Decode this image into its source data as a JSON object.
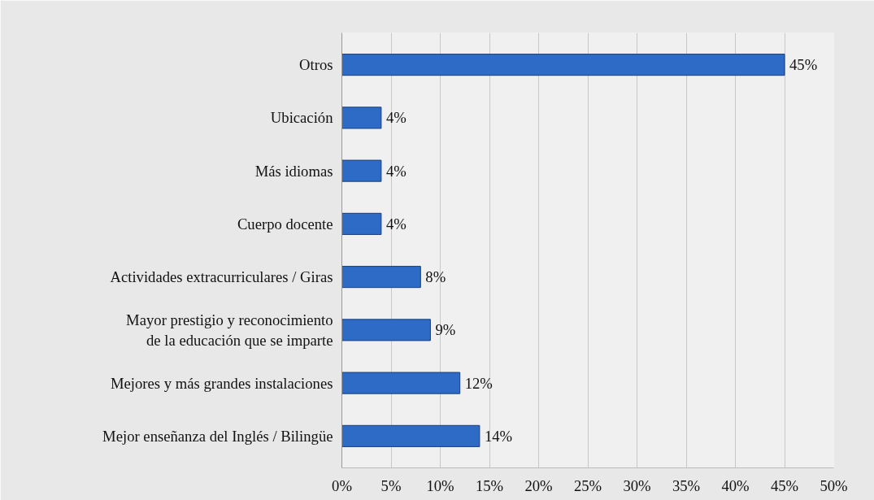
{
  "chart_data": {
    "type": "bar",
    "orientation": "horizontal",
    "categories": [
      "Otros",
      "Ubicación",
      "Más idiomas",
      "Cuerpo docente",
      "Actividades extracurriculares / Giras",
      "Mayor prestigio y reconocimiento\nde la educación que se imparte",
      "Mejores y más grandes instalaciones",
      "Mejor enseñanza del Inglés / Bilingüe"
    ],
    "values": [
      45,
      4,
      4,
      4,
      8,
      9,
      12,
      14
    ],
    "value_labels": [
      "45%",
      "4%",
      "4%",
      "4%",
      "8%",
      "9%",
      "12%",
      "14%"
    ],
    "color": "#2e6bc6",
    "xlim": [
      0,
      50
    ],
    "xticks": [
      {
        "value": 0,
        "label": "0%"
      },
      {
        "value": 5,
        "label": "5%"
      },
      {
        "value": 10,
        "label": "10%"
      },
      {
        "value": 15,
        "label": "15%"
      },
      {
        "value": 20,
        "label": "20%"
      },
      {
        "value": 25,
        "label": "25%"
      },
      {
        "value": 30,
        "label": "30%"
      },
      {
        "value": 35,
        "label": "35%"
      },
      {
        "value": 40,
        "label": "40%"
      },
      {
        "value": 45,
        "label": "45%"
      },
      {
        "value": 50,
        "label": "50%"
      }
    ],
    "grid": "x"
  }
}
